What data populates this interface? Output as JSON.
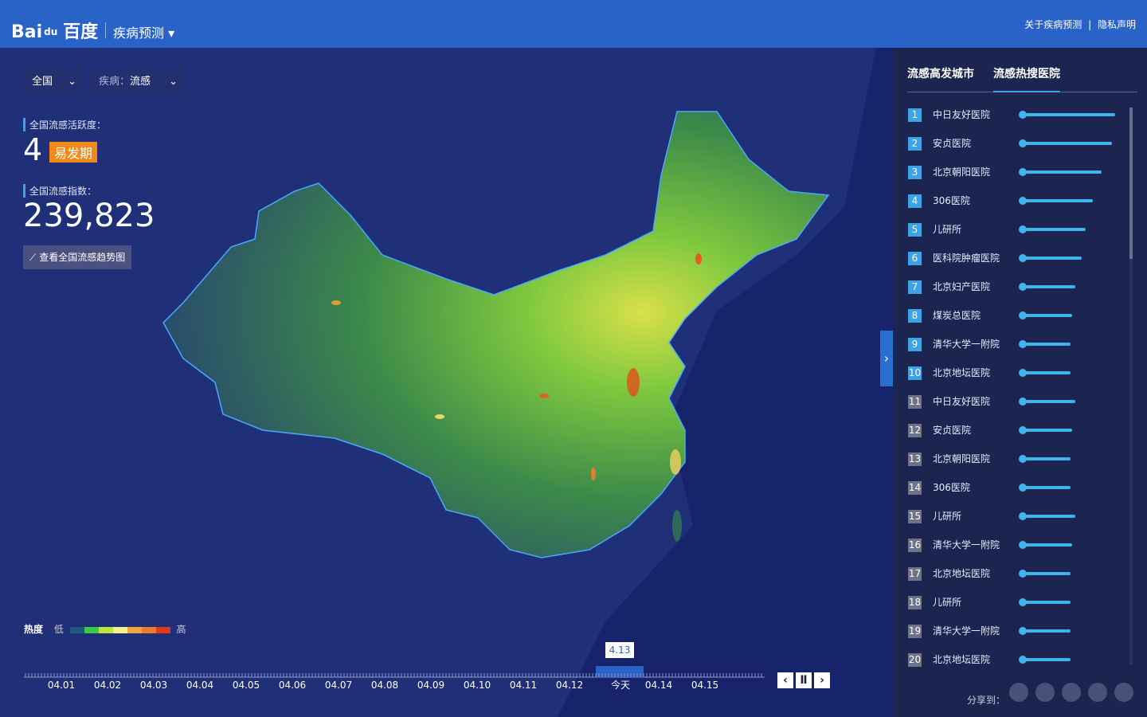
{
  "header": {
    "logo": [
      "Bai",
      "du",
      "百度"
    ],
    "product": "疾病预测",
    "links": [
      "关于疾病预测",
      "隐私声明"
    ],
    "separator": "|"
  },
  "filters": [
    {
      "label": "全国"
    },
    {
      "prefix": "疾病：",
      "label": "流感"
    }
  ],
  "activity": {
    "label": "全国流感活跃度：",
    "level": "4",
    "level_name": "易发期"
  },
  "index": {
    "label": "全国流感指数：",
    "value": "239,823",
    "link": "查看全国流感趋势图"
  },
  "legend": {
    "title": "热度",
    "low": "低",
    "high": "高",
    "colors": [
      "#1e5a7a",
      "#3cc84a",
      "#b8e83a",
      "#f2f28a",
      "#f2a63a",
      "#f07a2a",
      "#e03a1a"
    ]
  },
  "timeline": {
    "dates": [
      "04.01",
      "04.02",
      "04.03",
      "04.04",
      "04.05",
      "04.06",
      "04.07",
      "04.08",
      "04.09",
      "04.10",
      "04.11",
      "04.12",
      "今天",
      "04.14",
      "04.15"
    ],
    "current": "4.13"
  },
  "sidebar": {
    "tabs": [
      "流感高发城市",
      "流感热搜医院"
    ],
    "active_tab": 1,
    "hospitals": [
      {
        "rank": 1,
        "name": "中日友好医院",
        "heat": 117
      },
      {
        "rank": 2,
        "name": "安贞医院",
        "heat": 113
      },
      {
        "rank": 3,
        "name": "北京朝阳医院",
        "heat": 100
      },
      {
        "rank": 4,
        "name": "306医院",
        "heat": 89
      },
      {
        "rank": 5,
        "name": "儿研所",
        "heat": 80
      },
      {
        "rank": 6,
        "name": "医科院肿瘤医院",
        "heat": 75
      },
      {
        "rank": 7,
        "name": "北京妇产医院",
        "heat": 67
      },
      {
        "rank": 8,
        "name": "煤炭总医院",
        "heat": 63
      },
      {
        "rank": 9,
        "name": "清华大学一附院",
        "heat": 61
      },
      {
        "rank": 10,
        "name": "北京地坛医院",
        "heat": 61
      },
      {
        "rank": 11,
        "name": "中日友好医院",
        "heat": 67
      },
      {
        "rank": 12,
        "name": "安贞医院",
        "heat": 63
      },
      {
        "rank": 13,
        "name": "北京朝阳医院",
        "heat": 61
      },
      {
        "rank": 14,
        "name": "306医院",
        "heat": 61
      },
      {
        "rank": 15,
        "name": "儿研所",
        "heat": 67
      },
      {
        "rank": 16,
        "name": "清华大学一附院",
        "heat": 63
      },
      {
        "rank": 17,
        "name": "北京地坛医院",
        "heat": 61
      },
      {
        "rank": 18,
        "name": "儿研所",
        "heat": 61
      },
      {
        "rank": 19,
        "name": "清华大学一附院",
        "heat": 61
      },
      {
        "rank": 20,
        "name": "北京地坛医院",
        "heat": 61
      }
    ],
    "share_label": "分享到："
  }
}
